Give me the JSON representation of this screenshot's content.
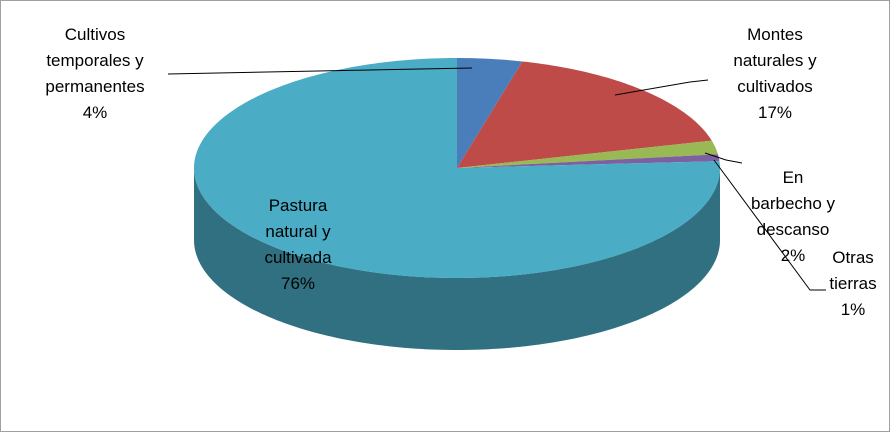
{
  "chart_data": {
    "type": "pie",
    "categories": [
      "Cultivos temporales y permanentes",
      "Montes naturales y cultivados",
      "En barbecho y descanso",
      "Otras tierras",
      "Pastura natural y cultivada"
    ],
    "values": [
      4,
      17,
      2,
      1,
      76
    ],
    "value_labels": [
      "4%",
      "17%",
      "2%",
      "1%",
      "76%"
    ],
    "colors": [
      "#4a7ebb",
      "#be4b48",
      "#98b954",
      "#7d60a0",
      "#4bacc6"
    ]
  }
}
